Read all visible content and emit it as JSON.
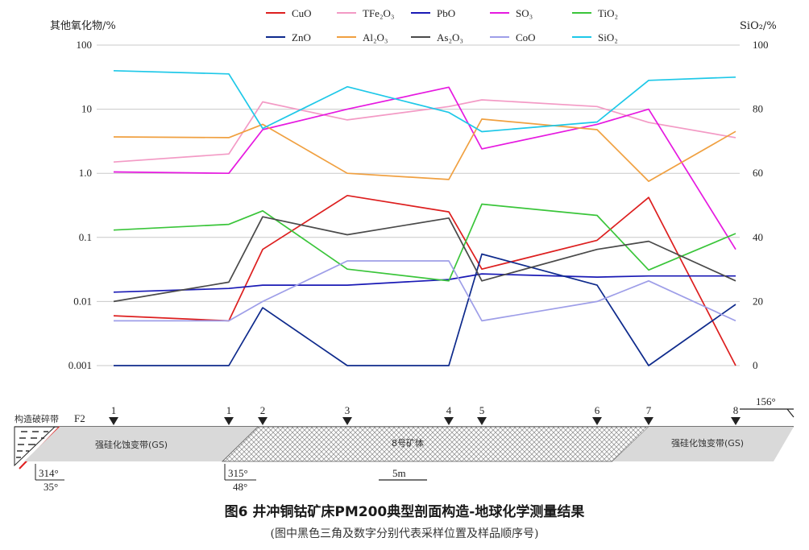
{
  "chart_data": {
    "type": "line",
    "ylabel_left": "其他氧化物/%",
    "ylabel_right": "SiO₂/%",
    "y_scale": "log",
    "ylim_left": [
      0.001,
      100
    ],
    "yticks_left": [
      "0.001",
      "0.01",
      "0.1",
      "1.0",
      "10",
      "100"
    ],
    "ylim_right": [
      0,
      100
    ],
    "yticks_right": [
      "0",
      "20",
      "40",
      "60",
      "80",
      "100"
    ],
    "x": [
      1,
      2,
      3,
      4,
      5,
      6,
      7,
      8,
      9
    ],
    "series": [
      {
        "name": "CuO",
        "color": "#dd1f1f",
        "values": [
          0.006,
          0.005,
          0.065,
          0.45,
          0.25,
          0.032,
          0.09,
          0.42,
          0.001
        ]
      },
      {
        "name": "TFe₂O₃",
        "color": "#f39ac5",
        "values": [
          1.5,
          2.0,
          13,
          6.8,
          11,
          14,
          11,
          6.2,
          3.6
        ]
      },
      {
        "name": "PbO",
        "color": "#1a1ab5",
        "values": [
          0.014,
          0.016,
          0.018,
          0.018,
          0.022,
          0.027,
          0.024,
          0.025,
          0.025
        ]
      },
      {
        "name": "SO₃",
        "color": "#e619e0",
        "values": [
          1.05,
          1.0,
          4.8,
          10,
          22,
          2.4,
          5.8,
          10,
          0.065
        ]
      },
      {
        "name": "TiO₂",
        "color": "#3ac53a",
        "values": [
          0.13,
          0.16,
          0.26,
          0.032,
          0.021,
          0.33,
          0.22,
          0.031,
          0.115
        ]
      },
      {
        "name": "ZnO",
        "color": "#0e2a8c",
        "values": [
          0.001,
          0.001,
          0.008,
          0.001,
          0.001,
          0.055,
          0.018,
          0.001,
          0.009
        ]
      },
      {
        "name": "Al₂O₃",
        "color": "#f0a040",
        "values": [
          3.7,
          3.6,
          5.8,
          1.0,
          0.8,
          7.0,
          4.8,
          0.75,
          4.5
        ]
      },
      {
        "name": "As₂O₃",
        "color": "#4a4a4a",
        "values": [
          0.01,
          0.02,
          0.21,
          0.11,
          0.2,
          0.021,
          0.065,
          0.087,
          0.021
        ]
      },
      {
        "name": "CoO",
        "color": "#9e9ee8",
        "values": [
          0.005,
          0.005,
          0.01,
          0.043,
          0.043,
          0.005,
          0.01,
          0.021,
          0.005
        ]
      },
      {
        "name": "SiO₂",
        "color": "#1ec8e8",
        "axis": "right",
        "values": [
          92,
          91,
          74,
          87,
          79,
          73,
          76,
          89,
          90
        ]
      }
    ],
    "sample_labels": [
      "1",
      "1",
      "2",
      "3",
      "4",
      "5",
      "6",
      "7",
      "8"
    ]
  },
  "section": {
    "fault_zone_label": "构造破碎带",
    "fault_name": "F2",
    "left_zone_label": "强硅化蚀变带(GS)",
    "ore_body_label": "8号矿体",
    "right_zone_label": "强硅化蚀变带(GS)",
    "attitude_left_dir": "314°",
    "attitude_left_dip": "35°",
    "attitude_mid_dir": "315°",
    "attitude_mid_dip": "48°",
    "strike_label": "156°",
    "scale_label": "5m"
  },
  "caption": {
    "title": "图6  井冲铜钴矿床PM200典型剖面构造-地球化学测量结果",
    "note": "(图中黑色三角及数字分别代表采样位置及样品顺序号)"
  }
}
